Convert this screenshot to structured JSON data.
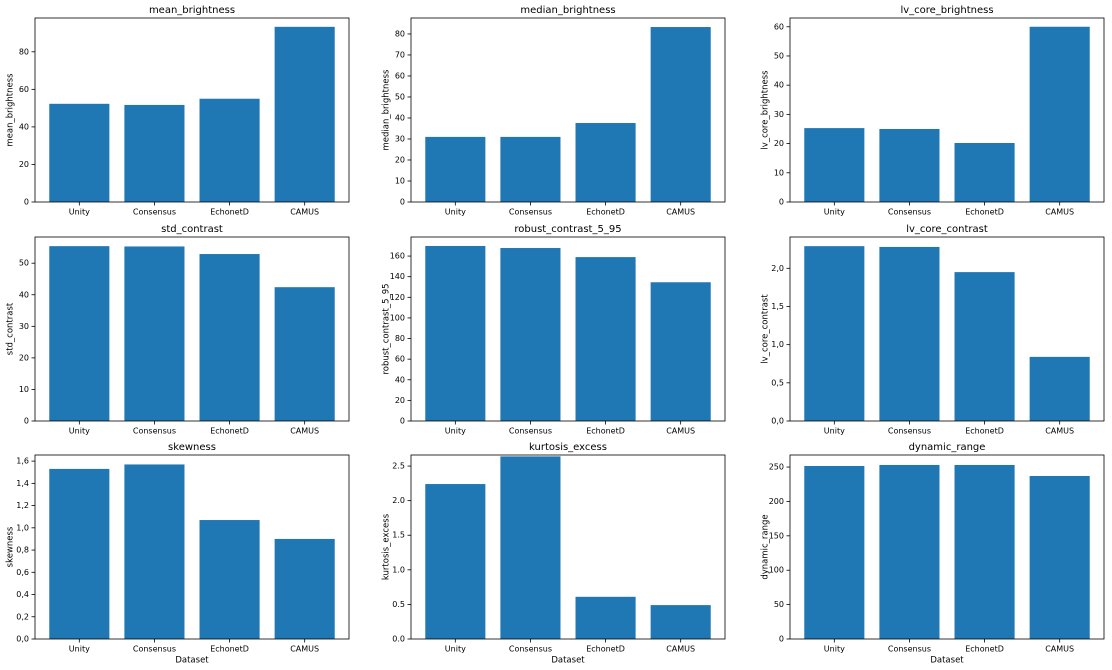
{
  "chart_data": [
    {
      "type": "bar",
      "title": "mean_brightness",
      "ylabel": "mean_brightness",
      "categories": [
        "Unity",
        "Consensus",
        "EchonetD",
        "CAMUS"
      ],
      "values": [
        52.3,
        51.7,
        55,
        93.3
      ],
      "color": "#1f77b4",
      "ylim": [
        0,
        98
      ],
      "yticks": [
        0,
        20,
        40,
        60,
        80
      ]
    },
    {
      "type": "bar",
      "title": "median_brightness",
      "ylabel": "median_brightness",
      "categories": [
        "Unity",
        "Consensus",
        "EchonetD",
        "CAMUS"
      ],
      "values": [
        31,
        31,
        37.6,
        83.3
      ],
      "color": "#1f77b4",
      "ylim": [
        0,
        87.6
      ],
      "yticks": [
        0,
        10,
        20,
        30,
        40,
        50,
        60,
        70,
        80
      ]
    },
    {
      "type": "bar",
      "title": "lv_core_brightness",
      "ylabel": "lv_core_brightness",
      "categories": [
        "Unity",
        "Consensus",
        "EchonetD",
        "CAMUS"
      ],
      "values": [
        25.3,
        25,
        20.2,
        60
      ],
      "color": "#1f77b4",
      "ylim": [
        0,
        63
      ],
      "yticks": [
        0,
        10,
        20,
        30,
        40,
        50,
        60
      ]
    },
    {
      "type": "bar",
      "title": "std_contrast",
      "ylabel": "std_contrast",
      "categories": [
        "Unity",
        "Consensus",
        "EchonetD",
        "CAMUS"
      ],
      "values": [
        55.4,
        55.3,
        52.9,
        42.4
      ],
      "color": "#1f77b4",
      "ylim": [
        0,
        58.3
      ],
      "yticks": [
        0,
        10,
        20,
        30,
        40,
        50
      ]
    },
    {
      "type": "bar",
      "title": "robust_contrast_5_95",
      "ylabel": "robust_contrast_5_95",
      "categories": [
        "Unity",
        "Consensus",
        "EchonetD",
        "CAMUS"
      ],
      "values": [
        169.8,
        167.8,
        159,
        134.6
      ],
      "color": "#1f77b4",
      "ylim": [
        0,
        178.5
      ],
      "yticks": [
        0,
        20,
        40,
        60,
        80,
        100,
        120,
        140,
        160
      ]
    },
    {
      "type": "bar",
      "title": "lv_core_contrast",
      "ylabel": "lv_core_contrast",
      "categories": [
        "Unity",
        "Consensus",
        "EchonetD",
        "CAMUS"
      ],
      "values": [
        2.29,
        2.28,
        1.95,
        0.84
      ],
      "color": "#1f77b4",
      "ylim": [
        0,
        2.41
      ],
      "yticks": [
        {
          "value": 0,
          "label": "0,0"
        },
        {
          "value": 0.5,
          "label": "0,5"
        },
        {
          "value": 1,
          "label": "1,0"
        },
        {
          "value": 1.5,
          "label": "1,5"
        },
        {
          "value": 2,
          "label": "2,0"
        }
      ]
    },
    {
      "type": "bar",
      "title": "skewness",
      "ylabel": "skewness",
      "xlabel": "Dataset",
      "categories": [
        "Unity",
        "Consensus",
        "EchonetD",
        "CAMUS"
      ],
      "values": [
        1.53,
        1.57,
        1.07,
        0.9
      ],
      "color": "#1f77b4",
      "ylim": [
        0,
        1.655
      ],
      "yticks": [
        {
          "value": 0,
          "label": "0,0"
        },
        {
          "value": 0.2,
          "label": "0,2"
        },
        {
          "value": 0.4,
          "label": "0,4"
        },
        {
          "value": 0.6,
          "label": "0,6"
        },
        {
          "value": 0.8,
          "label": "0,8"
        },
        {
          "value": 1,
          "label": "1,0"
        },
        {
          "value": 1.2,
          "label": "1,2"
        },
        {
          "value": 1.4,
          "label": "1,4"
        },
        {
          "value": 1.6,
          "label": "1,6"
        }
      ]
    },
    {
      "type": "bar",
      "title": "kurtosis_excess",
      "ylabel": "kurtosis_excess",
      "xlabel": "Dataset",
      "categories": [
        "Unity",
        "Consensus",
        "EchonetD",
        "CAMUS"
      ],
      "values": [
        2.24,
        2.64,
        0.61,
        0.49
      ],
      "color": "#1f77b4",
      "ylim": [
        0,
        2.66
      ],
      "yticks": [
        {
          "value": 0,
          "label": "0.0"
        },
        {
          "value": 0.5,
          "label": "0.5"
        },
        {
          "value": 1,
          "label": "1.0"
        },
        {
          "value": 1.5,
          "label": "1.5"
        },
        {
          "value": 2,
          "label": "2.0"
        },
        {
          "value": 2.5,
          "label": "2.5"
        }
      ]
    },
    {
      "type": "bar",
      "title": "dynamic_range",
      "ylabel": "dynamic_range",
      "xlabel": "Dataset",
      "categories": [
        "Unity",
        "Consensus",
        "EchonetD",
        "CAMUS"
      ],
      "values": [
        251.5,
        253,
        253,
        237
      ],
      "color": "#1f77b4",
      "ylim": [
        0,
        267.5
      ],
      "yticks": [
        0,
        50,
        100,
        150,
        200,
        250
      ]
    }
  ]
}
